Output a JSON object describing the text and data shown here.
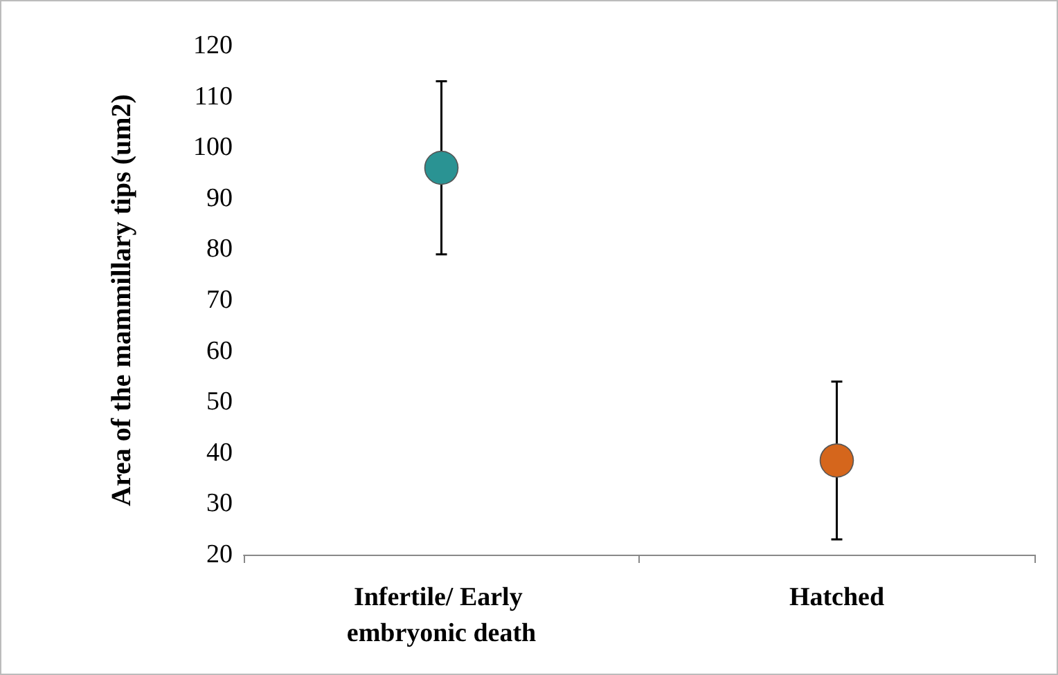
{
  "chart_data": {
    "type": "scatter",
    "ylabel": "Area of the mammillary tips (um2)",
    "categories": [
      "Infertile/ Early embryonic death",
      "Hatched"
    ],
    "values": [
      96,
      38.5
    ],
    "colors": [
      "#2a9393",
      "#d5661c"
    ],
    "errors": [
      [
        79,
        113
      ],
      [
        23,
        54
      ]
    ],
    "ylim": [
      20,
      120
    ],
    "yticks": [
      20,
      30,
      40,
      50,
      60,
      70,
      80,
      90,
      100,
      110,
      120
    ],
    "marker": "circle",
    "grid": false
  }
}
